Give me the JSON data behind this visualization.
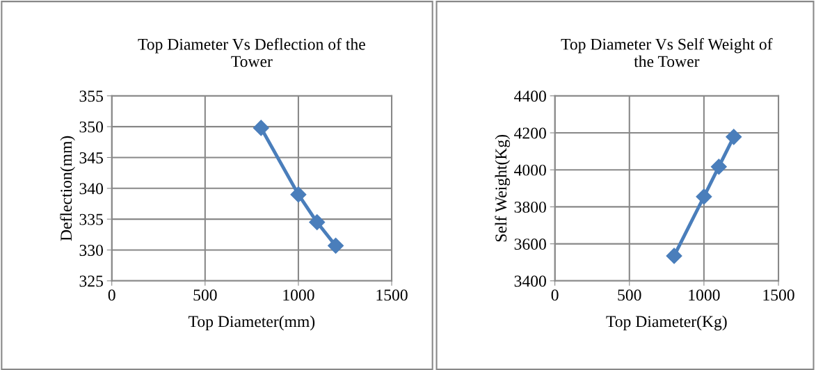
{
  "chart_data": [
    {
      "type": "line",
      "title": "Top Diameter Vs Deflection of the\nTower",
      "xlabel": "Top Diameter(mm)",
      "ylabel": "Deflection(mm)",
      "x": [
        800,
        1000,
        1100,
        1200
      ],
      "series": [
        {
          "color": "#4a7ebb",
          "values": [
            349.8,
            339.0,
            334.5,
            330.7
          ]
        }
      ],
      "xlim": [
        0,
        1500
      ],
      "xticks": [
        0,
        500,
        1000,
        1500
      ],
      "ylim": [
        325,
        355
      ],
      "yticks": [
        325,
        330,
        335,
        340,
        345,
        350,
        355
      ],
      "grid": true,
      "marker": "diamond",
      "line_style": "solid",
      "legend": false
    },
    {
      "type": "line",
      "title": "Top Diameter Vs Self Weight of\nthe Tower",
      "xlabel": "Top Diameter(Kg)",
      "ylabel": "Self Weight(Kg)",
      "x": [
        800,
        1000,
        1100,
        1200
      ],
      "series": [
        {
          "color": "#4a7ebb",
          "values": [
            3535,
            3855,
            4017,
            4178
          ]
        }
      ],
      "xlim": [
        0,
        1500
      ],
      "xticks": [
        0,
        500,
        1000,
        1500
      ],
      "ylim": [
        3400,
        4400
      ],
      "yticks": [
        3400,
        3600,
        3800,
        4000,
        4200,
        4400
      ],
      "grid": true,
      "marker": "diamond",
      "line_style": "solid",
      "legend": false
    }
  ]
}
